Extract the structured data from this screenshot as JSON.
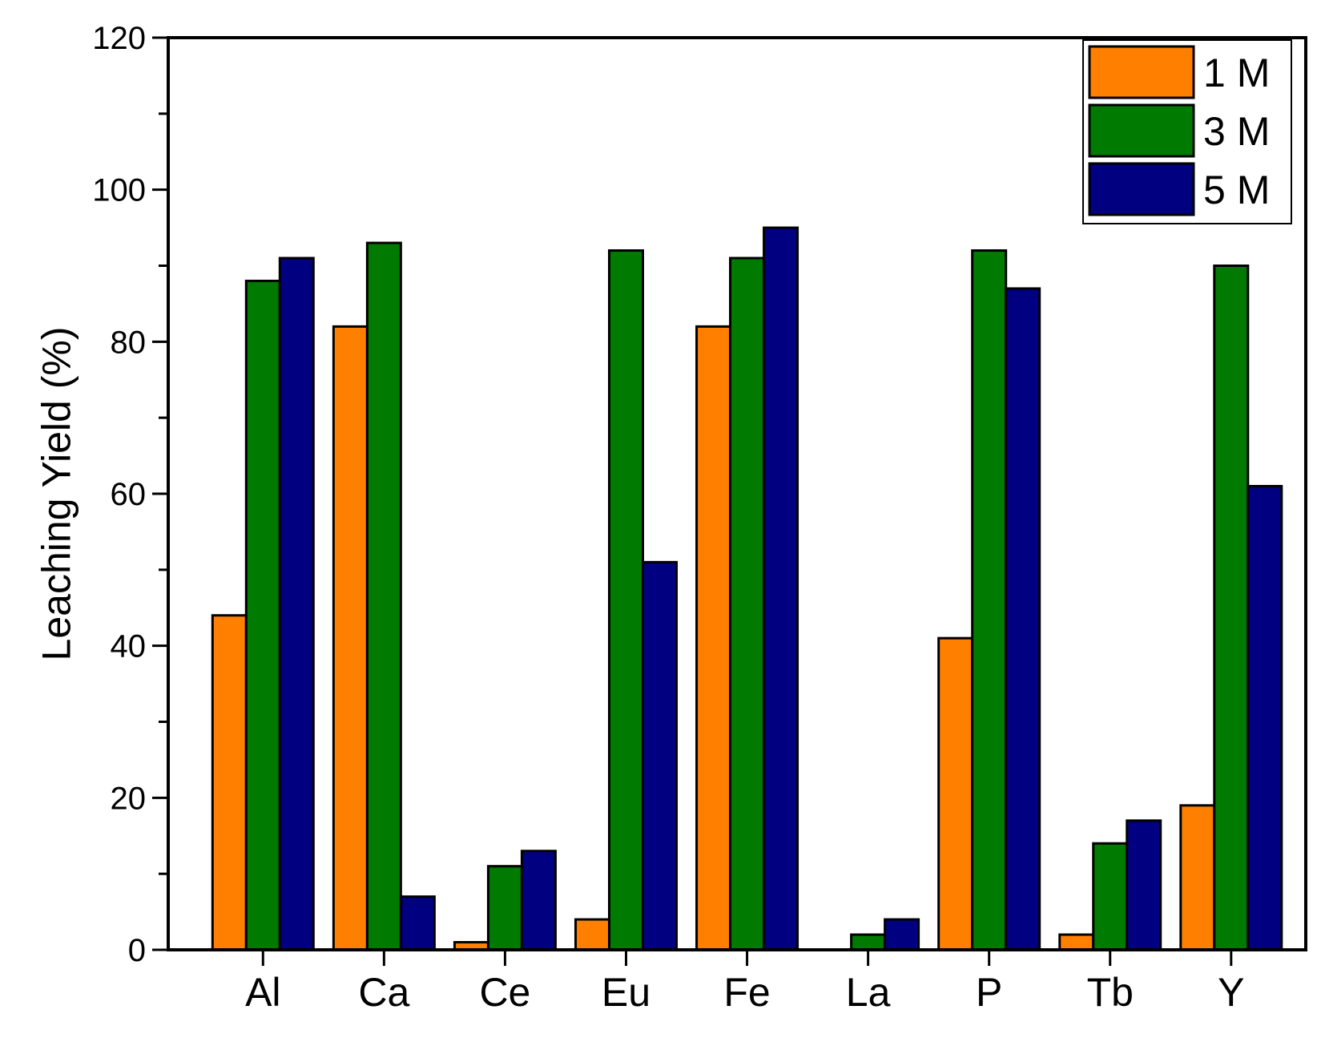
{
  "chart_data": {
    "type": "bar",
    "title": "",
    "xlabel": "",
    "ylabel": "Leaching Yield (%)",
    "ylim": [
      0,
      120
    ],
    "yticks": [
      "0",
      "20",
      "40",
      "60",
      "80",
      "100",
      "120"
    ],
    "categories": [
      "Al",
      "Ca",
      "Ce",
      "Eu",
      "Fe",
      "La",
      "P",
      "Tb",
      "Y"
    ],
    "series": [
      {
        "name": "1 M",
        "color": "#FF8000",
        "values": [
          44,
          82,
          1,
          4,
          82,
          0,
          41,
          2,
          19
        ]
      },
      {
        "name": "3 M",
        "color": "#007A00",
        "values": [
          88,
          93,
          11,
          92,
          91,
          2,
          92,
          14,
          90
        ]
      },
      {
        "name": "5 M",
        "color": "#000080",
        "values": [
          91,
          7,
          13,
          51,
          95,
          4,
          87,
          17,
          61
        ]
      }
    ],
    "grid": false,
    "legend": "top-right"
  }
}
